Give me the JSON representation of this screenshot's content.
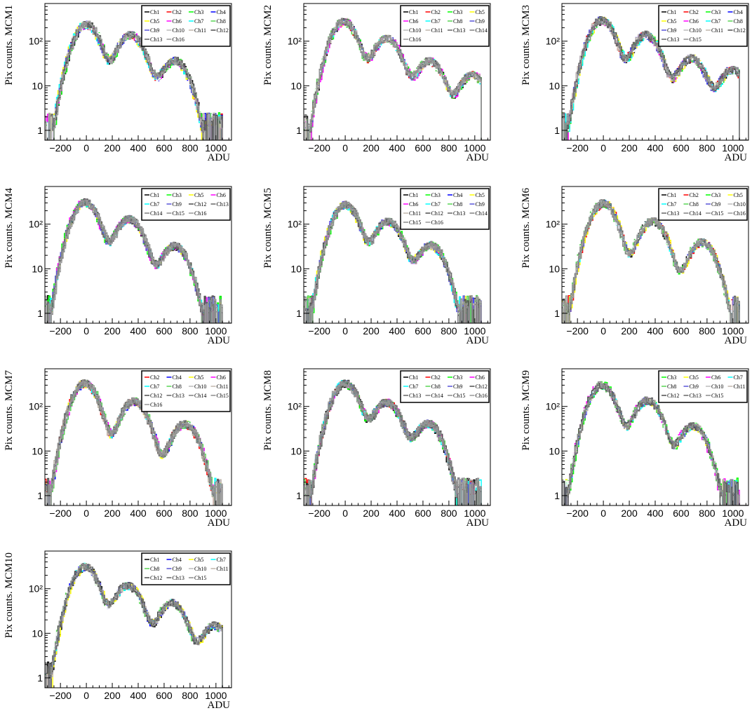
{
  "chart_data": [
    {
      "type": "line",
      "panel_label": "MCM1",
      "xlabel": "ADU",
      "ylabel": "Pix counts. MCM1",
      "y_scale": "log",
      "xlim": [
        -320,
        1120
      ],
      "ylim": [
        0.6,
        700
      ],
      "x_ticks": [
        "−200",
        "0",
        "200",
        "400",
        "600",
        "800",
        "1000"
      ],
      "y_ticks": [
        "1",
        "10",
        "10²"
      ],
      "legend_columns": 4,
      "legend_position": "top-right",
      "peaks": {
        "x": [
          0,
          340,
          680
        ],
        "y": [
          270,
          160,
          42
        ]
      },
      "series": [
        {
          "name": "Ch1",
          "color": "#000000"
        },
        {
          "name": "Ch2",
          "color": "#ff0000"
        },
        {
          "name": "Ch3",
          "color": "#00ff00"
        },
        {
          "name": "Ch4",
          "color": "#0000ff"
        },
        {
          "name": "Ch5",
          "color": "#ffff00"
        },
        {
          "name": "Ch6",
          "color": "#ff00ff"
        },
        {
          "name": "Ch7",
          "color": "#00ffff"
        },
        {
          "name": "Ch8",
          "color": "#59d454"
        },
        {
          "name": "Ch9",
          "color": "#5954d8"
        },
        {
          "name": "Ch10",
          "color": "#fefefe"
        },
        {
          "name": "Ch11",
          "color": "#c0b6ac"
        },
        {
          "name": "Ch12",
          "color": "#4c4c4c"
        },
        {
          "name": "Ch13",
          "color": "#666666"
        },
        {
          "name": "Ch16",
          "color": "#999999"
        }
      ]
    },
    {
      "type": "line",
      "panel_label": "MCM2",
      "xlabel": "ADU",
      "ylabel": "Pix counts. MCM2",
      "y_scale": "log",
      "xlim": [
        -320,
        1120
      ],
      "ylim": [
        0.6,
        700
      ],
      "x_ticks": [
        "−200",
        "0",
        "200",
        "400",
        "600",
        "800",
        "1000"
      ],
      "y_ticks": [
        "1",
        "10",
        "10²"
      ],
      "legend_columns": 4,
      "legend_position": "top-right",
      "peaks": {
        "x": [
          -10,
          320,
          650,
          980
        ],
        "y": [
          310,
          130,
          40,
          20
        ]
      },
      "series": [
        {
          "name": "Ch1",
          "color": "#000000"
        },
        {
          "name": "Ch2",
          "color": "#ff0000"
        },
        {
          "name": "Ch3",
          "color": "#00ff00"
        },
        {
          "name": "Ch5",
          "color": "#ffff00"
        },
        {
          "name": "Ch6",
          "color": "#ff00ff"
        },
        {
          "name": "Ch7",
          "color": "#00ffff"
        },
        {
          "name": "Ch8",
          "color": "#59d454"
        },
        {
          "name": "Ch9",
          "color": "#5954d8"
        },
        {
          "name": "Ch10",
          "color": "#fefefe"
        },
        {
          "name": "Ch11",
          "color": "#c0b6ac"
        },
        {
          "name": "Ch13",
          "color": "#666666"
        },
        {
          "name": "Ch14",
          "color": "#7f7f7f"
        },
        {
          "name": "Ch16",
          "color": "#999999"
        }
      ]
    },
    {
      "type": "line",
      "panel_label": "MCM3",
      "xlabel": "ADU",
      "ylabel": "Pix counts. MCM3",
      "y_scale": "log",
      "xlim": [
        -320,
        1120
      ],
      "ylim": [
        0.6,
        700
      ],
      "x_ticks": [
        "−200",
        "0",
        "200",
        "400",
        "600",
        "800",
        "1000"
      ],
      "y_ticks": [
        "1",
        "10",
        "10²"
      ],
      "legend_columns": 4,
      "legend_position": "top-right",
      "peaks": {
        "x": [
          -10,
          330,
          680,
          1000
        ],
        "y": [
          320,
          150,
          45,
          25
        ]
      },
      "series": [
        {
          "name": "Ch1",
          "color": "#000000"
        },
        {
          "name": "Ch2",
          "color": "#ff0000"
        },
        {
          "name": "Ch3",
          "color": "#00ff00"
        },
        {
          "name": "Ch4",
          "color": "#0000ff"
        },
        {
          "name": "Ch5",
          "color": "#ffff00"
        },
        {
          "name": "Ch6",
          "color": "#ff00ff"
        },
        {
          "name": "Ch7",
          "color": "#00ffff"
        },
        {
          "name": "Ch8",
          "color": "#59d454"
        },
        {
          "name": "Ch9",
          "color": "#5954d8"
        },
        {
          "name": "Ch10",
          "color": "#fefefe"
        },
        {
          "name": "Ch11",
          "color": "#c0b6ac"
        },
        {
          "name": "Ch12",
          "color": "#4c4c4c"
        },
        {
          "name": "Ch13",
          "color": "#666666"
        },
        {
          "name": "Ch15",
          "color": "#8c8c8c"
        }
      ]
    },
    {
      "type": "line",
      "panel_label": "MCM4",
      "xlabel": "ADU",
      "ylabel": "Pix counts. MCM4",
      "y_scale": "log",
      "xlim": [
        -320,
        1120
      ],
      "ylim": [
        0.6,
        700
      ],
      "x_ticks": [
        "−200",
        "0",
        "200",
        "400",
        "600",
        "800",
        "1000"
      ],
      "y_ticks": [
        "1",
        "10",
        "10²"
      ],
      "legend_columns": 4,
      "legend_position": "top-right",
      "peaks": {
        "x": [
          -10,
          330,
          680
        ],
        "y": [
          330,
          140,
          35
        ]
      },
      "series": [
        {
          "name": "Ch1",
          "color": "#000000"
        },
        {
          "name": "Ch3",
          "color": "#00ff00"
        },
        {
          "name": "Ch5",
          "color": "#ffff00"
        },
        {
          "name": "Ch6",
          "color": "#ff00ff"
        },
        {
          "name": "Ch7",
          "color": "#00ffff"
        },
        {
          "name": "Ch9",
          "color": "#5954d8"
        },
        {
          "name": "Ch12",
          "color": "#4c4c4c"
        },
        {
          "name": "Ch13",
          "color": "#666666"
        },
        {
          "name": "Ch14",
          "color": "#7f7f7f"
        },
        {
          "name": "Ch15",
          "color": "#8c8c8c"
        },
        {
          "name": "Ch16",
          "color": "#999999"
        }
      ]
    },
    {
      "type": "line",
      "panel_label": "MCM5",
      "xlabel": "ADU",
      "ylabel": "Pix counts. MCM5",
      "y_scale": "log",
      "xlim": [
        -320,
        1120
      ],
      "ylim": [
        0.6,
        700
      ],
      "x_ticks": [
        "−200",
        "0",
        "200",
        "400",
        "600",
        "800",
        "1000"
      ],
      "y_ticks": [
        "1",
        "10",
        "10²"
      ],
      "legend_columns": 4,
      "legend_position": "top-right",
      "peaks": {
        "x": [
          0,
          330,
          660
        ],
        "y": [
          280,
          120,
          35
        ]
      },
      "series": [
        {
          "name": "Ch1",
          "color": "#000000"
        },
        {
          "name": "Ch3",
          "color": "#00ff00"
        },
        {
          "name": "Ch4",
          "color": "#0000ff"
        },
        {
          "name": "Ch5",
          "color": "#ffff00"
        },
        {
          "name": "Ch6",
          "color": "#ff00ff"
        },
        {
          "name": "Ch7",
          "color": "#00ffff"
        },
        {
          "name": "Ch8",
          "color": "#59d454"
        },
        {
          "name": "Ch9",
          "color": "#5954d8"
        },
        {
          "name": "Ch11",
          "color": "#c0b6ac"
        },
        {
          "name": "Ch12",
          "color": "#4c4c4c"
        },
        {
          "name": "Ch13",
          "color": "#666666"
        },
        {
          "name": "Ch14",
          "color": "#7f7f7f"
        },
        {
          "name": "Ch15",
          "color": "#8c8c8c"
        },
        {
          "name": "Ch16",
          "color": "#999999"
        }
      ]
    },
    {
      "type": "line",
      "panel_label": "MCM6",
      "xlabel": "ADU",
      "ylabel": "Pix counts. MCM6",
      "y_scale": "log",
      "xlim": [
        -320,
        1120
      ],
      "ylim": [
        0.6,
        700
      ],
      "x_ticks": [
        "−200",
        "0",
        "200",
        "400",
        "600",
        "800",
        "1000"
      ],
      "y_ticks": [
        "1",
        "10",
        "10²"
      ],
      "legend_columns": 4,
      "legend_position": "top-right",
      "peaks": {
        "x": [
          0,
          380,
          760
        ],
        "y": [
          300,
          120,
          40
        ]
      },
      "series": [
        {
          "name": "Ch1",
          "color": "#000000"
        },
        {
          "name": "Ch2",
          "color": "#ff0000"
        },
        {
          "name": "Ch3",
          "color": "#00ff00"
        },
        {
          "name": "Ch5",
          "color": "#ffff00"
        },
        {
          "name": "Ch7",
          "color": "#00ffff"
        },
        {
          "name": "Ch8",
          "color": "#59d454"
        },
        {
          "name": "Ch9",
          "color": "#5954d8"
        },
        {
          "name": "Ch10",
          "color": "#fefefe"
        },
        {
          "name": "Ch13",
          "color": "#666666"
        },
        {
          "name": "Ch14",
          "color": "#7f7f7f"
        },
        {
          "name": "Ch15",
          "color": "#8c8c8c"
        },
        {
          "name": "Ch16",
          "color": "#999999"
        }
      ]
    },
    {
      "type": "line",
      "panel_label": "MCM7",
      "xlabel": "ADU",
      "ylabel": "Pix counts. MCM7",
      "y_scale": "log",
      "xlim": [
        -320,
        1120
      ],
      "ylim": [
        0.6,
        700
      ],
      "x_ticks": [
        "−200",
        "0",
        "200",
        "400",
        "600",
        "800",
        "1000"
      ],
      "y_ticks": [
        "1",
        "10",
        "10²"
      ],
      "legend_columns": 4,
      "legend_position": "top-right",
      "peaks": {
        "x": [
          -10,
          370,
          760
        ],
        "y": [
          330,
          130,
          40
        ]
      },
      "series": [
        {
          "name": "Ch2",
          "color": "#ff0000"
        },
        {
          "name": "Ch4",
          "color": "#0000ff"
        },
        {
          "name": "Ch5",
          "color": "#ffff00"
        },
        {
          "name": "Ch6",
          "color": "#ff00ff"
        },
        {
          "name": "Ch7",
          "color": "#00ffff"
        },
        {
          "name": "Ch8",
          "color": "#59d454"
        },
        {
          "name": "Ch10",
          "color": "#fefefe"
        },
        {
          "name": "Ch11",
          "color": "#c0b6ac"
        },
        {
          "name": "Ch12",
          "color": "#4c4c4c"
        },
        {
          "name": "Ch13",
          "color": "#666666"
        },
        {
          "name": "Ch14",
          "color": "#7f7f7f"
        },
        {
          "name": "Ch15",
          "color": "#8c8c8c"
        },
        {
          "name": "Ch16",
          "color": "#999999"
        }
      ]
    },
    {
      "type": "line",
      "panel_label": "MCM8",
      "xlabel": "ADU",
      "ylabel": "Pix counts. MCM8",
      "y_scale": "log",
      "xlim": [
        -320,
        1120
      ],
      "ylim": [
        0.6,
        700
      ],
      "x_ticks": [
        "−200",
        "0",
        "200",
        "400",
        "600",
        "800",
        "1000"
      ],
      "y_ticks": [
        "1",
        "10",
        "10²"
      ],
      "legend_columns": 4,
      "legend_position": "top-right",
      "peaks": {
        "x": [
          0,
          320,
          640
        ],
        "y": [
          320,
          120,
          40
        ]
      },
      "series": [
        {
          "name": "Ch1",
          "color": "#000000"
        },
        {
          "name": "Ch2",
          "color": "#ff0000"
        },
        {
          "name": "Ch3",
          "color": "#00ff00"
        },
        {
          "name": "Ch6",
          "color": "#ff00ff"
        },
        {
          "name": "Ch7",
          "color": "#00ffff"
        },
        {
          "name": "Ch8",
          "color": "#59d454"
        },
        {
          "name": "Ch9",
          "color": "#5954d8"
        },
        {
          "name": "Ch12",
          "color": "#4c4c4c"
        },
        {
          "name": "Ch13",
          "color": "#666666"
        },
        {
          "name": "Ch14",
          "color": "#7f7f7f"
        },
        {
          "name": "Ch15",
          "color": "#8c8c8c"
        },
        {
          "name": "Ch16",
          "color": "#999999"
        }
      ]
    },
    {
      "type": "line",
      "panel_label": "MCM9",
      "xlabel": "ADU",
      "ylabel": "Pix counts. MCM9",
      "y_scale": "log",
      "xlim": [
        -320,
        1120
      ],
      "ylim": [
        0.6,
        700
      ],
      "x_ticks": [
        "−200",
        "0",
        "200",
        "400",
        "600",
        "800",
        "1000"
      ],
      "y_ticks": [
        "1",
        "10",
        "10²"
      ],
      "legend_columns": 4,
      "legend_position": "top-right",
      "peaks": {
        "x": [
          -10,
          340,
          690
        ],
        "y": [
          290,
          130,
          35
        ]
      },
      "series": [
        {
          "name": "Ch3",
          "color": "#00ff00"
        },
        {
          "name": "Ch5",
          "color": "#ffff00"
        },
        {
          "name": "Ch6",
          "color": "#ff00ff"
        },
        {
          "name": "Ch7",
          "color": "#00ffff"
        },
        {
          "name": "Ch8",
          "color": "#59d454"
        },
        {
          "name": "Ch9",
          "color": "#5954d8"
        },
        {
          "name": "Ch10",
          "color": "#fefefe"
        },
        {
          "name": "Ch11",
          "color": "#c0b6ac"
        },
        {
          "name": "Ch12",
          "color": "#4c4c4c"
        },
        {
          "name": "Ch13",
          "color": "#666666"
        },
        {
          "name": "Ch15",
          "color": "#8c8c8c"
        }
      ]
    },
    {
      "type": "line",
      "panel_label": "MCM10",
      "xlabel": "ADU",
      "ylabel": "Pix counts. MCM10",
      "y_scale": "log",
      "xlim": [
        -320,
        1120
      ],
      "ylim": [
        0.6,
        700
      ],
      "x_ticks": [
        "−200",
        "0",
        "200",
        "400",
        "600",
        "800",
        "1000"
      ],
      "y_ticks": [
        "1",
        "10",
        "10²"
      ],
      "legend_columns": 4,
      "legend_position": "top-right",
      "peaks": {
        "x": [
          -10,
          320,
          660,
          990
        ],
        "y": [
          290,
          110,
          45,
          14
        ]
      },
      "series": [
        {
          "name": "Ch1",
          "color": "#000000"
        },
        {
          "name": "Ch4",
          "color": "#0000ff"
        },
        {
          "name": "Ch5",
          "color": "#ffff00"
        },
        {
          "name": "Ch7",
          "color": "#00ffff"
        },
        {
          "name": "Ch8",
          "color": "#59d454"
        },
        {
          "name": "Ch9",
          "color": "#5954d8"
        },
        {
          "name": "Ch10",
          "color": "#fefefe"
        },
        {
          "name": "Ch11",
          "color": "#c0b6ac"
        },
        {
          "name": "Ch12",
          "color": "#4c4c4c"
        },
        {
          "name": "Ch13",
          "color": "#666666"
        },
        {
          "name": "Ch15",
          "color": "#8c8c8c"
        }
      ]
    }
  ]
}
